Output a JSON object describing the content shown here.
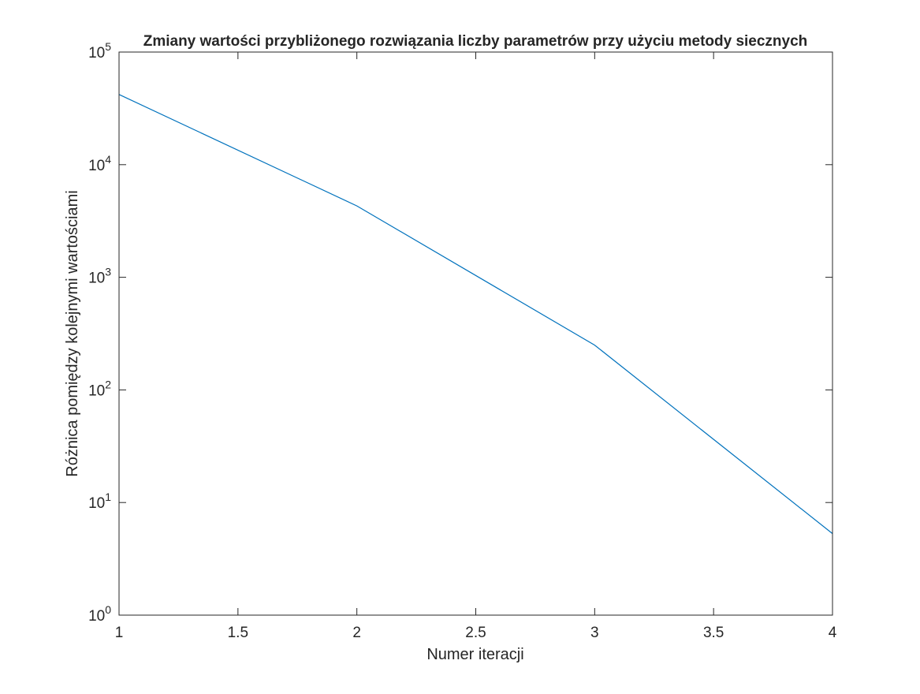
{
  "chart_data": {
    "type": "line",
    "title": "Zmiany wartości przybliżonego rozwiązania liczby parametrów przy użyciu metody siecznych",
    "xlabel": "Numer iteracji",
    "ylabel": "Różnica pomiędzy kolejnymi wartościami",
    "xlim": [
      1,
      4
    ],
    "ylim": [
      1,
      100000
    ],
    "yscale": "log",
    "grid": false,
    "xticks": [
      1,
      1.5,
      2,
      2.5,
      3,
      3.5,
      4
    ],
    "xtick_labels": [
      "1",
      "1.5",
      "2",
      "2.5",
      "3",
      "3.5",
      "4"
    ],
    "yticks": [
      1,
      10,
      100,
      1000,
      10000,
      100000
    ],
    "ytick_labels": [
      {
        "base": "10",
        "exp": "0"
      },
      {
        "base": "10",
        "exp": "1"
      },
      {
        "base": "10",
        "exp": "2"
      },
      {
        "base": "10",
        "exp": "3"
      },
      {
        "base": "10",
        "exp": "4"
      },
      {
        "base": "10",
        "exp": "5"
      }
    ],
    "series": [
      {
        "x": [
          1,
          2,
          3,
          4
        ],
        "y": [
          42000,
          4300,
          250,
          5.3
        ],
        "color": "#0072BD"
      }
    ]
  }
}
